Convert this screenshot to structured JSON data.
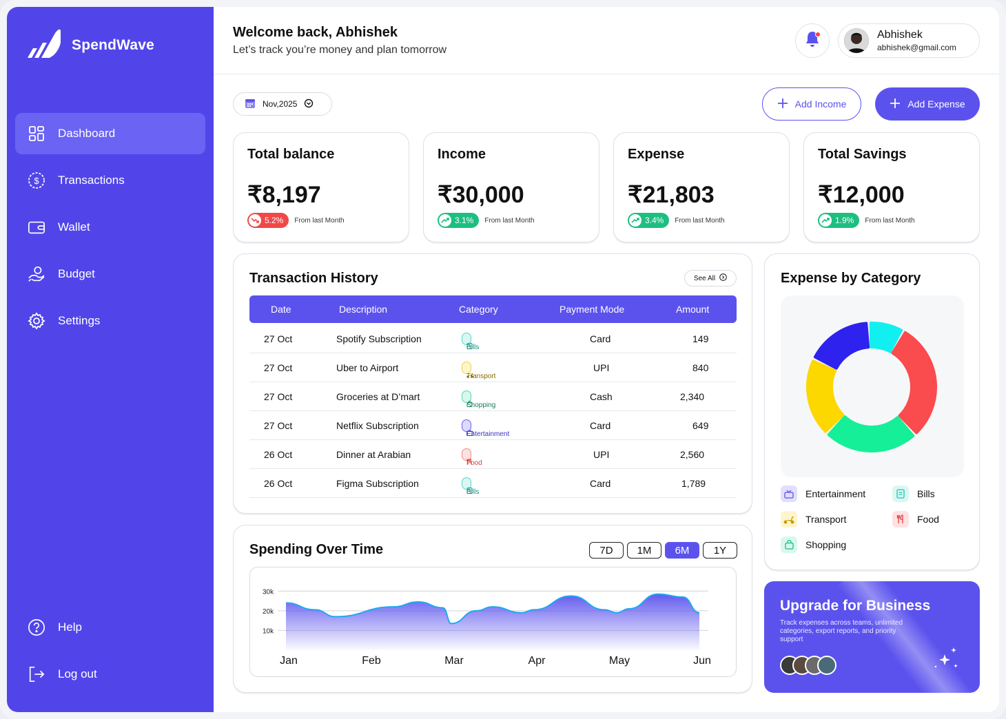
{
  "brand": {
    "name": "SpendWave"
  },
  "sidebar": {
    "items": [
      {
        "label": "Dashboard",
        "icon": "dashboard-icon"
      },
      {
        "label": "Transactions",
        "icon": "dollar-circle-icon"
      },
      {
        "label": "Wallet",
        "icon": "wallet-icon"
      },
      {
        "label": "Budget",
        "icon": "budget-hand-icon"
      },
      {
        "label": "Settings",
        "icon": "gear-icon"
      }
    ],
    "bottom": [
      {
        "label": "Help",
        "icon": "help-icon"
      },
      {
        "label": "Log out",
        "icon": "logout-icon"
      }
    ]
  },
  "header": {
    "welcome": "Welcome back, Abhishek",
    "subtitle": "Let’s track you’re money and plan tomorrow",
    "user": {
      "name": "Abhishek",
      "email": "abhishek@gmail.com"
    }
  },
  "toolbar": {
    "date": "Nov,2025",
    "add_income": "Add Income",
    "add_expense": "Add Expense"
  },
  "stats": [
    {
      "title": "Total balance",
      "value": "₹8,197",
      "change": "5.2%",
      "trend": "down",
      "note": "From last Month"
    },
    {
      "title": "Income",
      "value": "₹30,000",
      "change": "3.1%",
      "trend": "up",
      "note": "From last Month"
    },
    {
      "title": "Expense",
      "value": "₹21,803",
      "change": "3.4%",
      "trend": "up",
      "note": "From last Month"
    },
    {
      "title": "Total Savings",
      "value": "₹12,000",
      "change": "1.9%",
      "trend": "up",
      "note": "From last Month"
    }
  ],
  "transactions": {
    "title": "Transaction History",
    "see_all": "See All",
    "columns": [
      "Date",
      "Description",
      "Category",
      "Payment Mode",
      "Amount"
    ],
    "rows": [
      {
        "date": "27 Oct",
        "description": "Spotify Subscription",
        "category": "Bills",
        "mode": "Card",
        "amount": "149"
      },
      {
        "date": "27 Oct",
        "description": "Uber to Airport",
        "category": "Transport",
        "mode": "UPI",
        "amount": "840"
      },
      {
        "date": "27 Oct",
        "description": "Groceries at D’mart",
        "category": "Shopping",
        "mode": "Cash",
        "amount": "2,340"
      },
      {
        "date": "27 Oct",
        "description": "Netflix Subscription",
        "category": "Entertainment",
        "mode": "Card",
        "amount": "649"
      },
      {
        "date": "26 Oct",
        "description": "Dinner at Arabian",
        "category": "Food",
        "mode": "UPI",
        "amount": "2,560"
      },
      {
        "date": "26 Oct",
        "description": "Figma Subscription",
        "category": "Bills",
        "mode": "Card",
        "amount": "1,789"
      }
    ]
  },
  "spending": {
    "title": "Spending Over Time",
    "ranges": [
      "7D",
      "1M",
      "6M",
      "1Y"
    ],
    "active_range": "6M"
  },
  "chart_data": {
    "type": "area",
    "x": [
      "Jan",
      "Feb",
      "Mar",
      "Apr",
      "May",
      "Jun"
    ],
    "y_ticks": [
      "30k",
      "20k",
      "10k"
    ],
    "ylim": [
      0,
      35000
    ],
    "series": [
      {
        "points": [
          {
            "x": 0.0,
            "y": 24000
          },
          {
            "x": 0.35,
            "y": 20500
          },
          {
            "x": 0.6,
            "y": 17000
          },
          {
            "x": 1.3,
            "y": 22000
          },
          {
            "x": 1.6,
            "y": 24500
          },
          {
            "x": 1.9,
            "y": 21500
          },
          {
            "x": 2.0,
            "y": 13500
          },
          {
            "x": 2.3,
            "y": 20000
          },
          {
            "x": 2.5,
            "y": 22000
          },
          {
            "x": 2.85,
            "y": 19000
          },
          {
            "x": 3.0,
            "y": 20500
          },
          {
            "x": 3.45,
            "y": 27500
          },
          {
            "x": 3.85,
            "y": 20500
          },
          {
            "x": 4.0,
            "y": 19000
          },
          {
            "x": 4.15,
            "y": 21000
          },
          {
            "x": 4.5,
            "y": 28500
          },
          {
            "x": 4.8,
            "y": 27000
          },
          {
            "x": 5.0,
            "y": 19000
          }
        ]
      }
    ],
    "grid": true
  },
  "expense_by_category": {
    "title": "Expense by Category",
    "slices": [
      {
        "name": "Entertainment",
        "value": 17,
        "color": "#2e22ee"
      },
      {
        "name": "Bills",
        "value": 9,
        "color": "#12eff0"
      },
      {
        "name": "Food",
        "value": 30,
        "color": "#fa4b4e"
      },
      {
        "name": "Shopping",
        "value": 24,
        "color": "#14ef98"
      },
      {
        "name": "Transport",
        "value": 20,
        "color": "#fdd700"
      }
    ],
    "legend": [
      {
        "label": "Entertainment",
        "icon": "tv-icon",
        "color": "#5b52ee",
        "bg": "#e1dffd"
      },
      {
        "label": "Bills",
        "icon": "receipt-icon",
        "color": "#1fc4b0",
        "bg": "#d9f8f3"
      },
      {
        "label": "Transport",
        "icon": "scooter-icon",
        "color": "#c99a00",
        "bg": "#fdf5cc"
      },
      {
        "label": "Food",
        "icon": "utensils-icon",
        "color": "#e24747",
        "bg": "#ffe1e1"
      },
      {
        "label": "Shopping",
        "icon": "shopping-bag-icon",
        "color": "#1fb985",
        "bg": "#d8f8ee"
      }
    ]
  },
  "upgrade": {
    "title": "Upgrade for Business",
    "text": "Track expenses across teams, unlimited categories, export reports, and priority support"
  },
  "colors": {
    "primary": "#5b52ee",
    "sidebar": "#5145ea",
    "down": "#f04848",
    "up": "#1dbf80"
  }
}
